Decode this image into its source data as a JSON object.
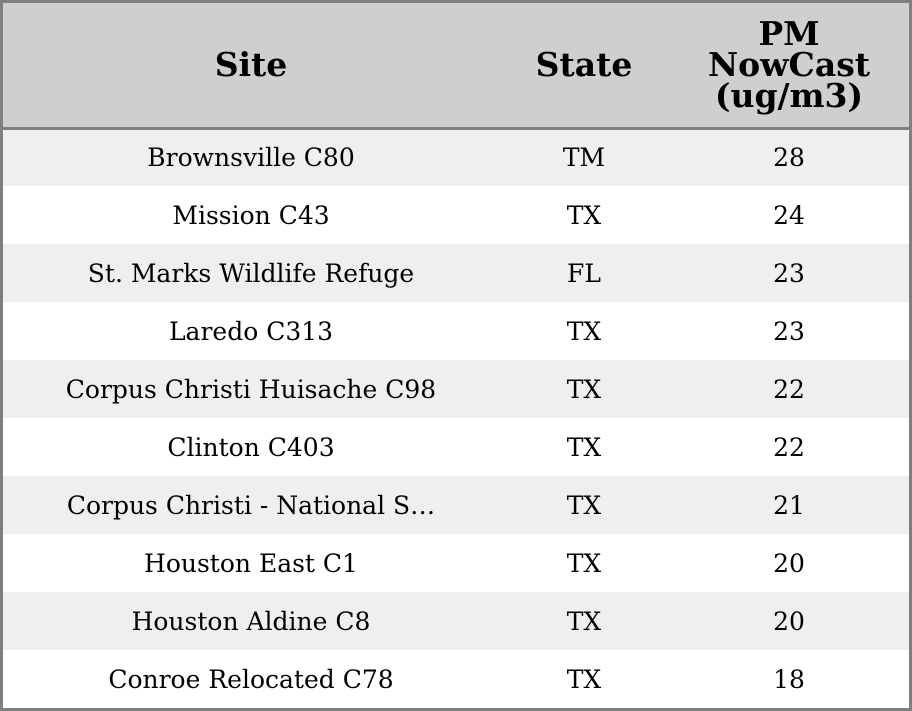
{
  "table": {
    "headers": {
      "site": "Site",
      "state": "State",
      "pm_lines": [
        "PM",
        "NowCast",
        "(ug/m3)"
      ]
    },
    "rows": [
      {
        "site": "Brownsville C80",
        "state": "TM",
        "pm": "28"
      },
      {
        "site": "Mission C43",
        "state": "TX",
        "pm": "24"
      },
      {
        "site": "St. Marks Wildlife Refuge",
        "state": "FL",
        "pm": "23"
      },
      {
        "site": "Laredo C313",
        "state": "TX",
        "pm": "23"
      },
      {
        "site": "Corpus Christi Huisache C98",
        "state": "TX",
        "pm": "22"
      },
      {
        "site": "Clinton C403",
        "state": "TX",
        "pm": "22"
      },
      {
        "site": "Corpus Christi - National S…",
        "state": "TX",
        "pm": "21"
      },
      {
        "site": "Houston East C1",
        "state": "TX",
        "pm": "20"
      },
      {
        "site": "Houston Aldine C8",
        "state": "TX",
        "pm": "20"
      },
      {
        "site": "Conroe Relocated C78",
        "state": "TX",
        "pm": "18"
      }
    ]
  },
  "colors": {
    "header_bg": "#cfcfcf",
    "stripe_bg": "#efefef",
    "row_bg": "#ffffff",
    "border": "#808080"
  }
}
